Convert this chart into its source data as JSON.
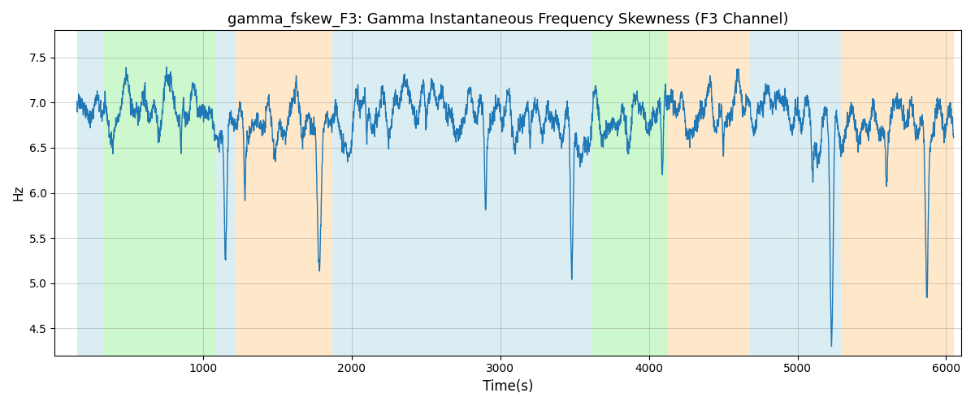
{
  "title": "gamma_fskew_F3: Gamma Instantaneous Frequency Skewness (F3 Channel)",
  "xlabel": "Time(s)",
  "ylabel": "Hz",
  "xlim": [
    0,
    6100
  ],
  "ylim": [
    4.2,
    7.8
  ],
  "x_ticks": [
    1000,
    2000,
    3000,
    4000,
    5000,
    6000
  ],
  "yticks": [
    4.5,
    5.0,
    5.5,
    6.0,
    6.5,
    7.0,
    7.5
  ],
  "line_color": "#1f77b4",
  "line_width": 1.0,
  "seed": 42,
  "bg_bands": [
    {
      "xmin": 150,
      "xmax": 330,
      "color": "#add8e6",
      "alpha": 0.45
    },
    {
      "xmin": 330,
      "xmax": 1080,
      "color": "#90ee90",
      "alpha": 0.45
    },
    {
      "xmin": 1080,
      "xmax": 1220,
      "color": "#add8e6",
      "alpha": 0.45
    },
    {
      "xmin": 1220,
      "xmax": 1870,
      "color": "#ffd59e",
      "alpha": 0.55
    },
    {
      "xmin": 1870,
      "xmax": 2050,
      "color": "#add8e6",
      "alpha": 0.45
    },
    {
      "xmin": 2050,
      "xmax": 3290,
      "color": "#add8e6",
      "alpha": 0.45
    },
    {
      "xmin": 3290,
      "xmax": 3490,
      "color": "#add8e6",
      "alpha": 0.45
    },
    {
      "xmin": 3490,
      "xmax": 3620,
      "color": "#add8e6",
      "alpha": 0.45
    },
    {
      "xmin": 3620,
      "xmax": 4130,
      "color": "#90ee90",
      "alpha": 0.45
    },
    {
      "xmin": 4130,
      "xmax": 4680,
      "color": "#ffd59e",
      "alpha": 0.55
    },
    {
      "xmin": 4680,
      "xmax": 5290,
      "color": "#add8e6",
      "alpha": 0.45
    },
    {
      "xmin": 5290,
      "xmax": 6050,
      "color": "#ffd59e",
      "alpha": 0.55
    }
  ]
}
